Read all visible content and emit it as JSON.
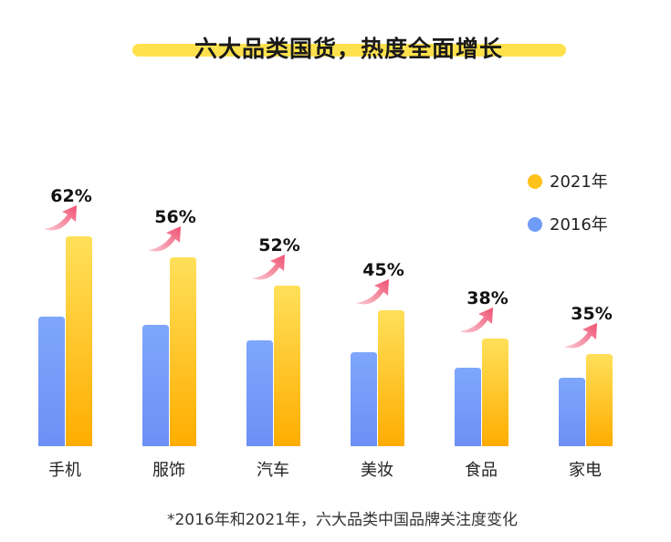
{
  "chart_data": {
    "type": "bar",
    "title": "六大品类国货，热度全面增长",
    "categories": [
      "手机",
      "服饰",
      "汽车",
      "美妆",
      "食品",
      "家电"
    ],
    "series": [
      {
        "name": "2016年",
        "values": [
          142,
          133,
          116,
          103,
          86,
          75
        ]
      },
      {
        "name": "2021年",
        "values": [
          230,
          207,
          176,
          149,
          118,
          101
        ]
      }
    ],
    "growth_labels": [
      "62%",
      "56%",
      "52%",
      "45%",
      "38%",
      "35%"
    ],
    "legend_position": "top-right",
    "footnote": "*2016年和2021年，六大品类中国品牌关注度变化",
    "colors": {
      "series_2016": "#6f9cf8",
      "series_2021": "#ffc21a",
      "arrow": "#f0607a",
      "title_highlight": "#ffe14d"
    }
  }
}
